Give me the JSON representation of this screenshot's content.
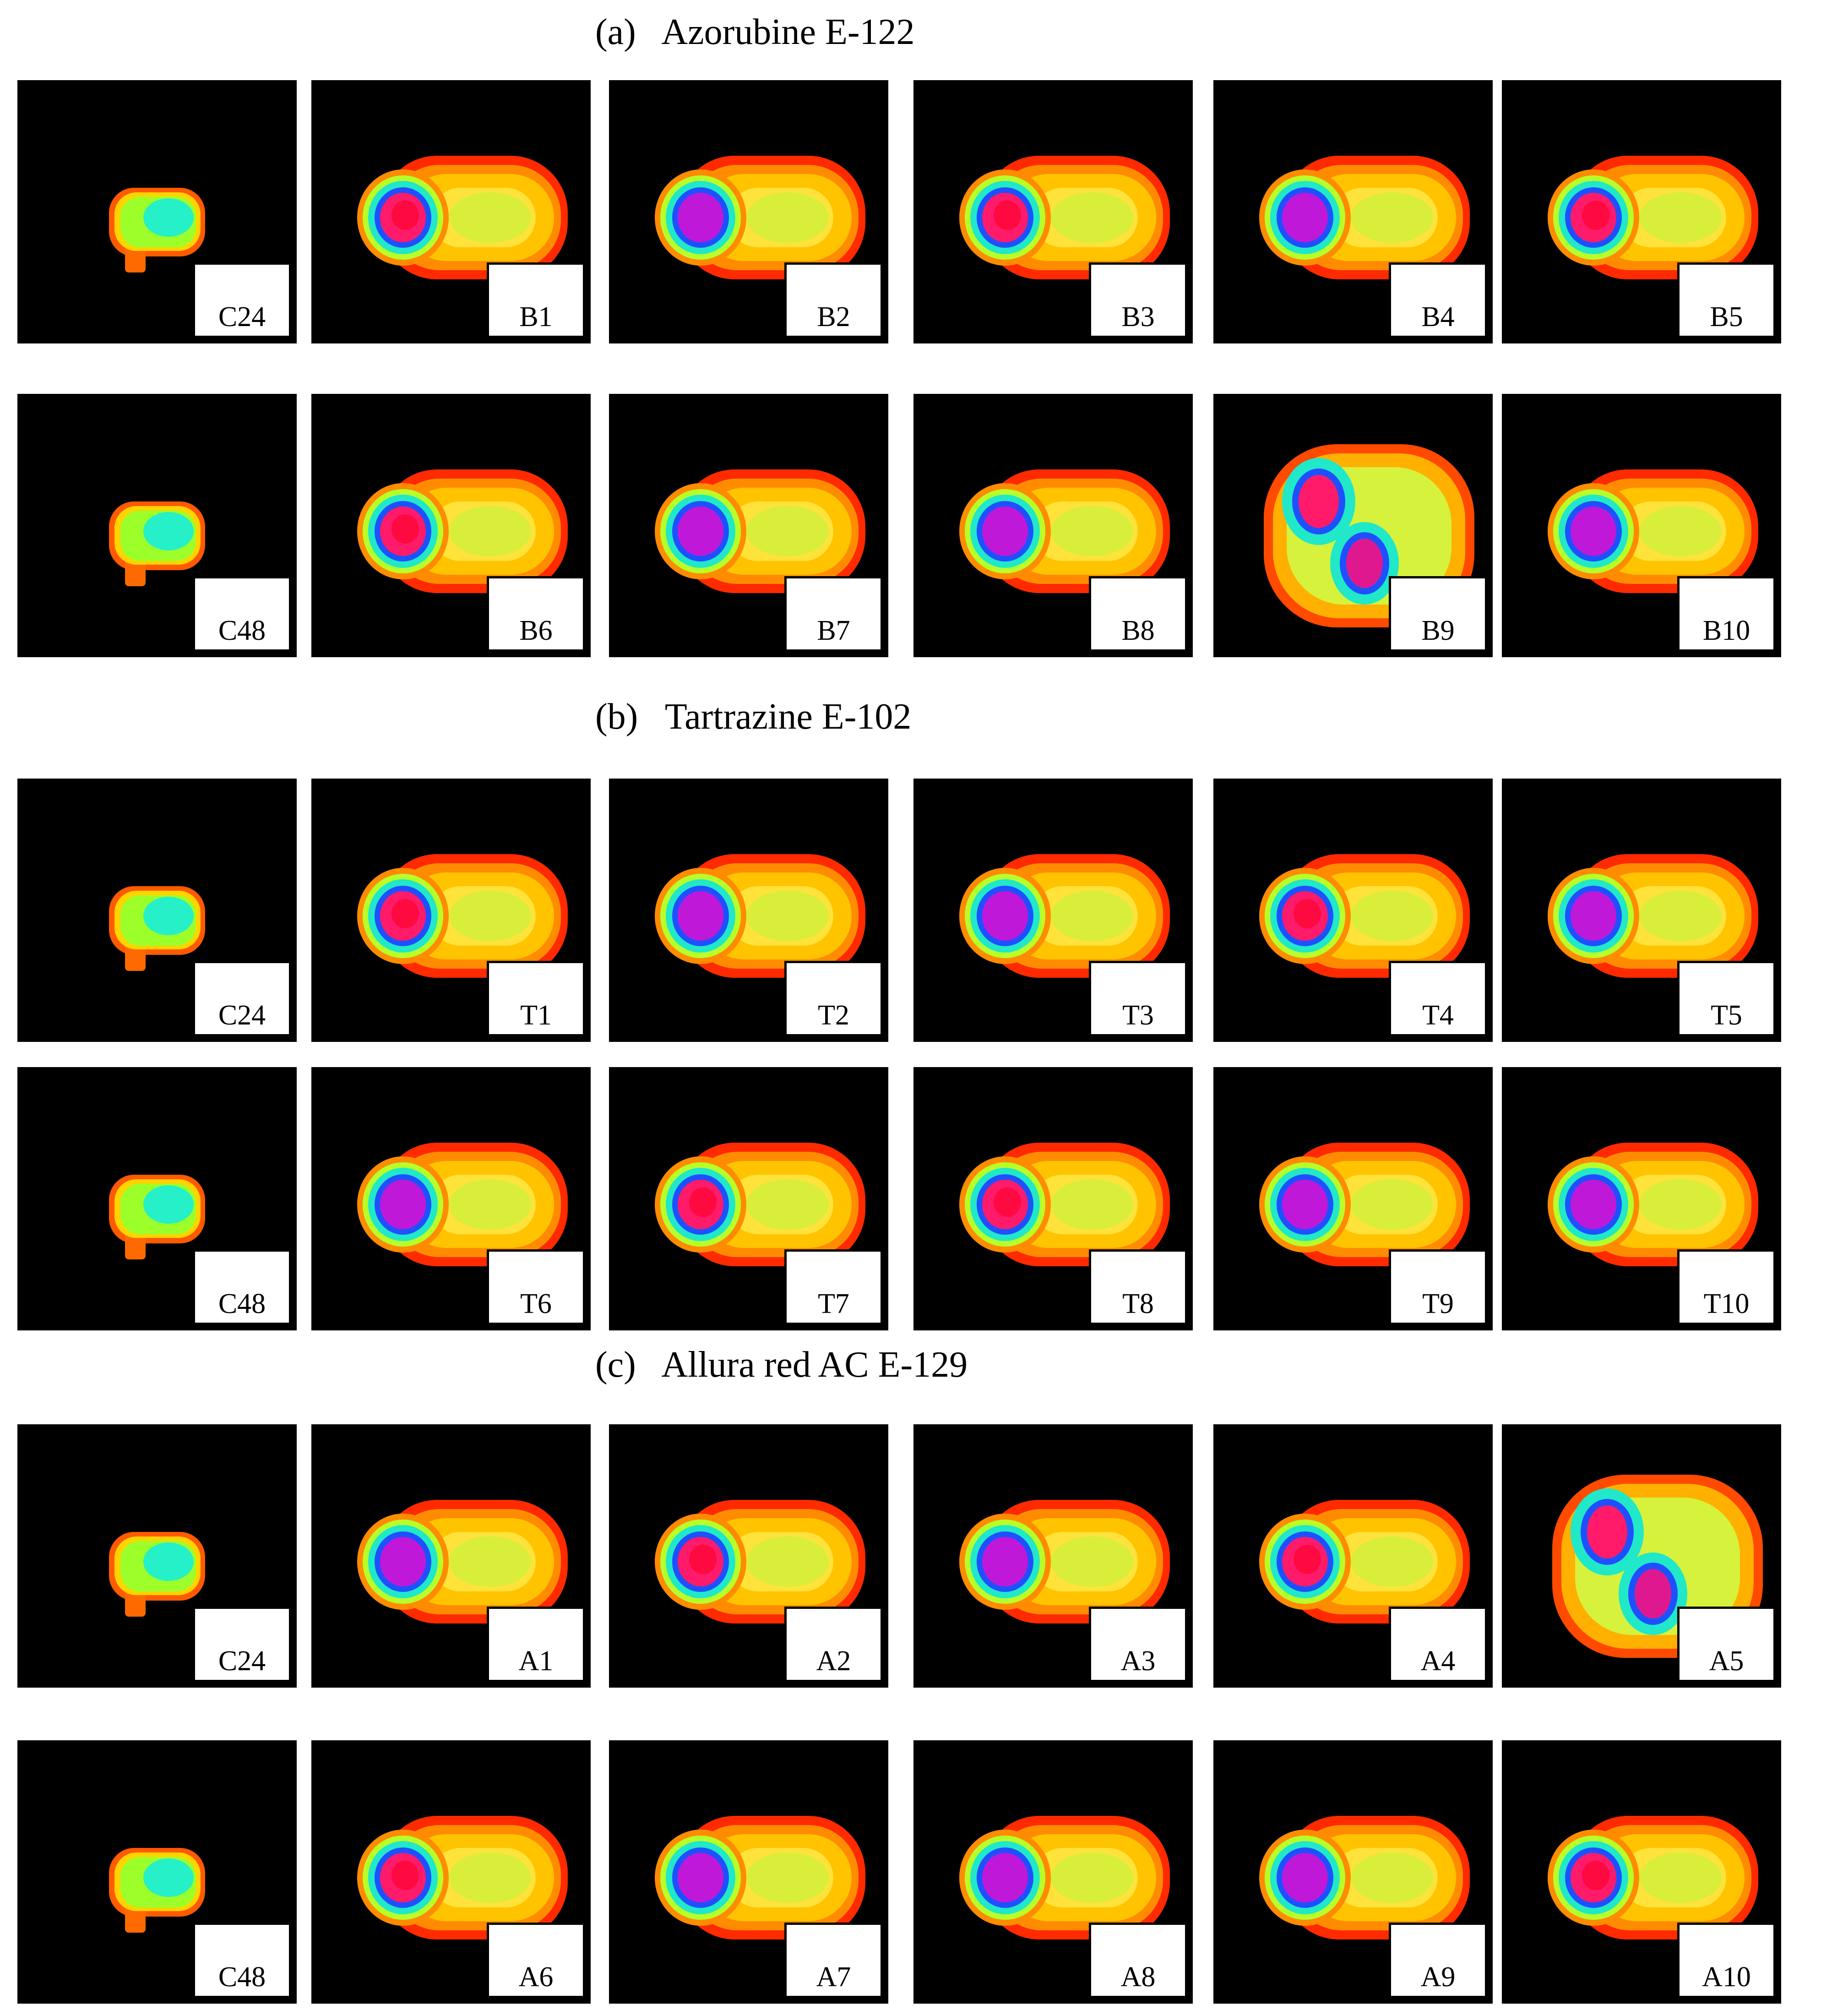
{
  "titles": [
    {
      "text": "(a)   Azorubine E-122"
    },
    {
      "text": "(b)   Tartrazine E-102"
    },
    {
      "text": "(c)   Allura red AC E-129"
    }
  ],
  "groups": [
    {
      "rows": [
        [
          {
            "label": "C24",
            "type": "control"
          },
          {
            "label": "B1",
            "type": "comet",
            "intensity": "high"
          },
          {
            "label": "B2",
            "type": "comet",
            "intensity": "medium"
          },
          {
            "label": "B3",
            "type": "comet",
            "intensity": "high"
          },
          {
            "label": "B4",
            "type": "comet",
            "intensity": "medium"
          },
          {
            "label": "B5",
            "type": "comet",
            "intensity": "high"
          }
        ],
        [
          {
            "label": "C48",
            "type": "control"
          },
          {
            "label": "B6",
            "type": "comet",
            "intensity": "high"
          },
          {
            "label": "B7",
            "type": "comet",
            "intensity": "medium"
          },
          {
            "label": "B8",
            "type": "comet",
            "intensity": "medium"
          },
          {
            "label": "B9",
            "type": "double",
            "intensity": "medium"
          },
          {
            "label": "B10",
            "type": "comet",
            "intensity": "medium"
          }
        ]
      ]
    },
    {
      "rows": [
        [
          {
            "label": "C24",
            "type": "control"
          },
          {
            "label": "T1",
            "type": "comet",
            "intensity": "high"
          },
          {
            "label": "T2",
            "type": "comet",
            "intensity": "medium"
          },
          {
            "label": "T3",
            "type": "comet",
            "intensity": "medium"
          },
          {
            "label": "T4",
            "type": "comet",
            "intensity": "high"
          },
          {
            "label": "T5",
            "type": "comet",
            "intensity": "medium"
          }
        ],
        [
          {
            "label": "C48",
            "type": "control"
          },
          {
            "label": "T6",
            "type": "comet",
            "intensity": "medium"
          },
          {
            "label": "T7",
            "type": "comet",
            "intensity": "high"
          },
          {
            "label": "T8",
            "type": "comet",
            "intensity": "high"
          },
          {
            "label": "T9",
            "type": "comet",
            "intensity": "medium"
          },
          {
            "label": "T10",
            "type": "comet",
            "intensity": "medium"
          }
        ]
      ]
    },
    {
      "rows": [
        [
          {
            "label": "C24",
            "type": "control"
          },
          {
            "label": "A1",
            "type": "comet",
            "intensity": "medium"
          },
          {
            "label": "A2",
            "type": "comet",
            "intensity": "high"
          },
          {
            "label": "A3",
            "type": "comet",
            "intensity": "medium"
          },
          {
            "label": "A4",
            "type": "comet",
            "intensity": "high"
          },
          {
            "label": "A5",
            "type": "double",
            "intensity": "high"
          }
        ],
        [
          {
            "label": "C48",
            "type": "control"
          },
          {
            "label": "A6",
            "type": "comet",
            "intensity": "high"
          },
          {
            "label": "A7",
            "type": "comet",
            "intensity": "medium"
          },
          {
            "label": "A8",
            "type": "comet",
            "intensity": "medium"
          },
          {
            "label": "A9",
            "type": "comet",
            "intensity": "medium"
          },
          {
            "label": "A10",
            "type": "comet",
            "intensity": "high"
          }
        ]
      ]
    }
  ]
}
